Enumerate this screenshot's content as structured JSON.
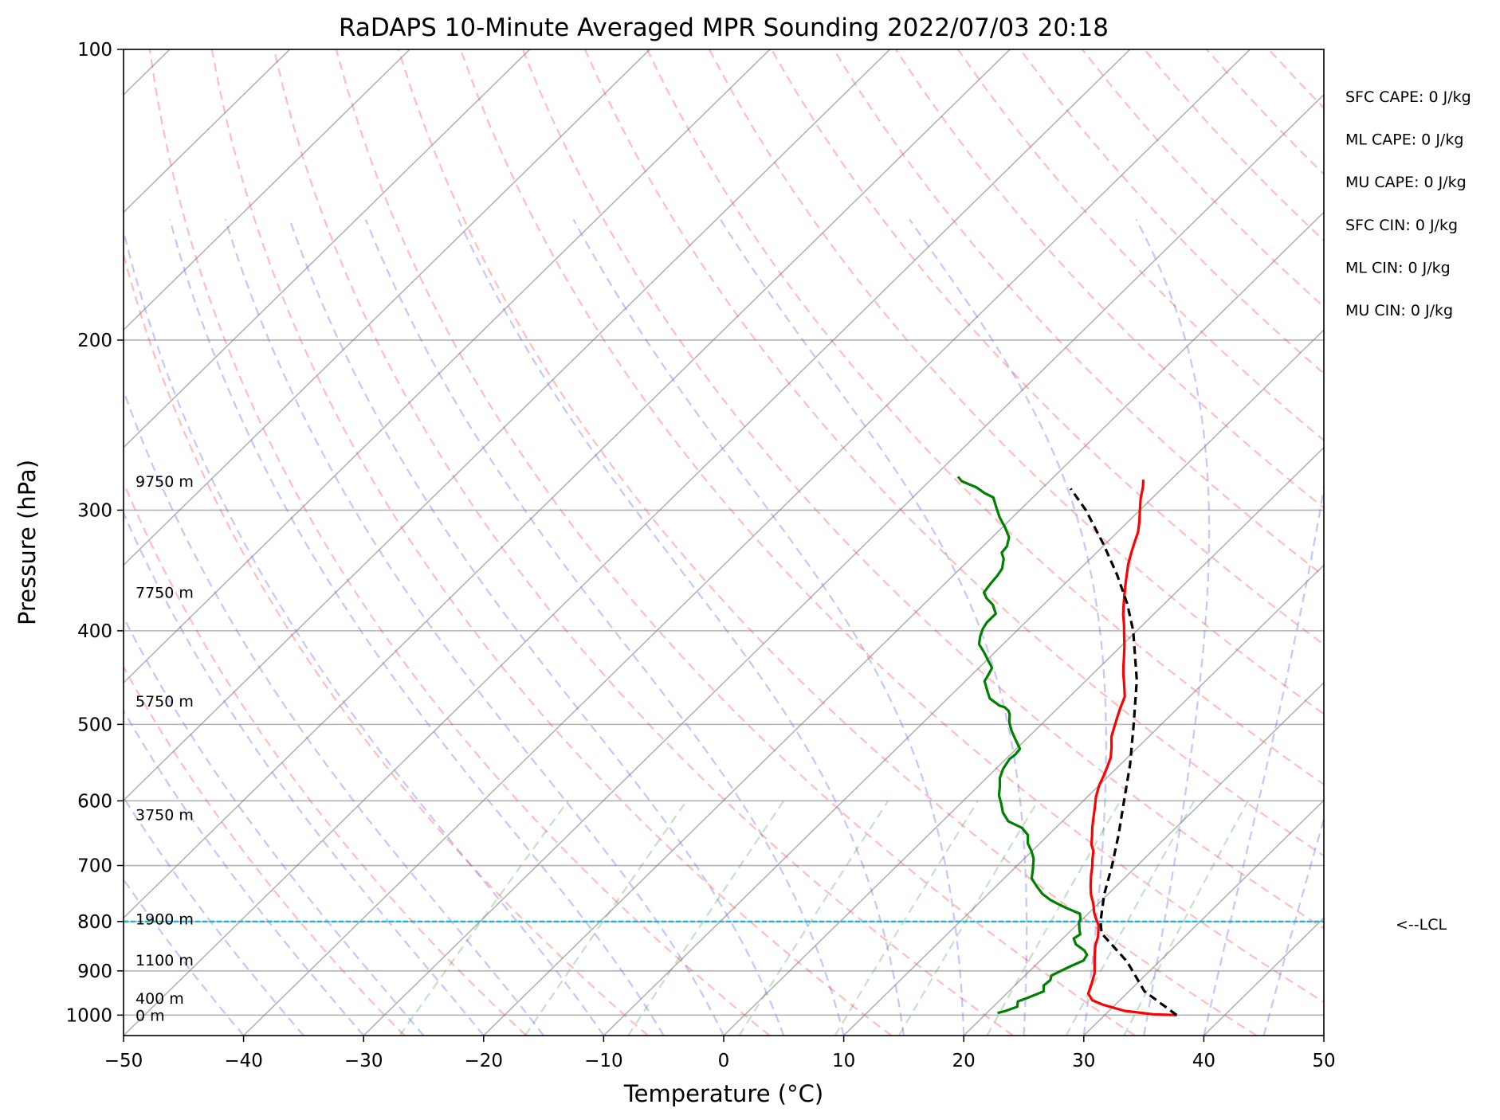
{
  "chart_data": {
    "type": "line",
    "title": "RaDAPS 10-Minute Averaged MPR Sounding 2022/07/03 20:18",
    "xlabel": "Temperature (°C)",
    "ylabel": "Pressure (hPa)",
    "xlim": [
      -50,
      50
    ],
    "ylim": [
      1050,
      100
    ],
    "y_scale": "log",
    "skew_t": true,
    "grid": true,
    "x_ticks": [
      "−50",
      "−40",
      "−30",
      "−20",
      "−10",
      "0",
      "10",
      "20",
      "30",
      "40",
      "50"
    ],
    "x_tick_values": [
      -50,
      -40,
      -30,
      -20,
      -10,
      0,
      10,
      20,
      30,
      40,
      50
    ],
    "y_ticks": [
      "100",
      "200",
      "300",
      "400",
      "500",
      "600",
      "700",
      "800",
      "900",
      "1000"
    ],
    "y_tick_values": [
      100,
      200,
      300,
      400,
      500,
      600,
      700,
      800,
      900,
      1000
    ],
    "height_labels": [
      {
        "text": "9750 m",
        "p": 280
      },
      {
        "text": "7750 m",
        "p": 365
      },
      {
        "text": "5750 m",
        "p": 473
      },
      {
        "text": "3750 m",
        "p": 620
      },
      {
        "text": "1900 m",
        "p": 795
      },
      {
        "text": "1100 m",
        "p": 877
      },
      {
        "text": "400 m",
        "p": 960
      },
      {
        "text": "0 m",
        "p": 1000
      }
    ],
    "indices": [
      "SFC CAPE: 0 J/kg",
      "ML CAPE: 0 J/kg",
      "MU CAPE: 0 J/kg",
      "SFC CIN: 0 J/kg",
      "ML CIN: 0 J/kg",
      "MU CIN: 0 J/kg"
    ],
    "lcl_label": "<--LCL",
    "lcl_pressure": 800,
    "series": [
      {
        "color": "#ff0000",
        "points": [
          [
            36,
            1000
          ],
          [
            34,
            998
          ],
          [
            31.3,
            990
          ],
          [
            28.9,
            975
          ],
          [
            27.7,
            965
          ],
          [
            26.8,
            950
          ],
          [
            26.3,
            930
          ],
          [
            25.6,
            905
          ],
          [
            24.6,
            880
          ],
          [
            24,
            865
          ],
          [
            23.3,
            847
          ],
          [
            22.8,
            830
          ],
          [
            21.9,
            808
          ],
          [
            21.1,
            795
          ],
          [
            20.4,
            783
          ],
          [
            19.6,
            767
          ],
          [
            18.6,
            750
          ],
          [
            17.9,
            736
          ],
          [
            17,
            717
          ],
          [
            16.3,
            701
          ],
          [
            15.7,
            689
          ],
          [
            15.1,
            676
          ],
          [
            14.4,
            666
          ],
          [
            13.7,
            652
          ],
          [
            13,
            639
          ],
          [
            12.2,
            623
          ],
          [
            11.5,
            609
          ],
          [
            10.7,
            594
          ],
          [
            10,
            578
          ],
          [
            9.6,
            566
          ],
          [
            9.1,
            553
          ],
          [
            8.6,
            541
          ],
          [
            7.8,
            528
          ],
          [
            6.9,
            515
          ],
          [
            6.3,
            503
          ],
          [
            5.7,
            491
          ],
          [
            5.2,
            481
          ],
          [
            4.6,
            468
          ],
          [
            3.3,
            452
          ],
          [
            2.6,
            444
          ],
          [
            1.8,
            434
          ],
          [
            1.1,
            425
          ],
          [
            0.2,
            414
          ],
          [
            -0.7,
            404
          ],
          [
            -1.6,
            394
          ],
          [
            -2.5,
            385
          ],
          [
            -3.3,
            376
          ],
          [
            -4.1,
            367
          ],
          [
            -4.9,
            358
          ],
          [
            -5.6,
            350
          ],
          [
            -6.4,
            341
          ],
          [
            -7.1,
            332
          ],
          [
            -7.7,
            324
          ],
          [
            -8.3,
            316
          ],
          [
            -9.1,
            308
          ],
          [
            -10,
            300
          ],
          [
            -10.9,
            292
          ],
          [
            -11.7,
            284
          ],
          [
            -12.3,
            279
          ]
        ]
      },
      {
        "color": "#008000",
        "points": [
          [
            20.9,
            995
          ],
          [
            21.4,
            990
          ],
          [
            22,
            980
          ],
          [
            21.6,
            968
          ],
          [
            22.2,
            958
          ],
          [
            22.9,
            945
          ],
          [
            22.4,
            932
          ],
          [
            22.5,
            920
          ],
          [
            22.2,
            910
          ],
          [
            22.6,
            900
          ],
          [
            23,
            890
          ],
          [
            23.6,
            878
          ],
          [
            23.4,
            866
          ],
          [
            22.8,
            857
          ],
          [
            21.6,
            845
          ],
          [
            20.9,
            833
          ],
          [
            21.1,
            825
          ],
          [
            20.6,
            815
          ],
          [
            20,
            802
          ],
          [
            19.8,
            795
          ],
          [
            19.3,
            785
          ],
          [
            17.9,
            776
          ],
          [
            16.9,
            769
          ],
          [
            15.7,
            760
          ],
          [
            14.5,
            749
          ],
          [
            13.5,
            737
          ],
          [
            12.3,
            722
          ],
          [
            11.7,
            708
          ],
          [
            10.8,
            689
          ],
          [
            10,
            677
          ],
          [
            9,
            664
          ],
          [
            8.3,
            651
          ],
          [
            7.2,
            640
          ],
          [
            5.5,
            630
          ],
          [
            4.3,
            617
          ],
          [
            3.4,
            604
          ],
          [
            2.5,
            592
          ],
          [
            1.9,
            581
          ],
          [
            1.1,
            568
          ],
          [
            0.6,
            556
          ],
          [
            0.3,
            543
          ],
          [
            0.4,
            537
          ],
          [
            0.3,
            530
          ],
          [
            -0.9,
            518
          ],
          [
            -1.9,
            508
          ],
          [
            -2.8,
            498
          ],
          [
            -3.5,
            488
          ],
          [
            -3.9,
            484
          ],
          [
            -4.5,
            480
          ],
          [
            -5.1,
            478
          ],
          [
            -6.5,
            470
          ],
          [
            -7.4,
            461
          ],
          [
            -8.4,
            451
          ],
          [
            -8.6,
            445
          ],
          [
            -8.9,
            437
          ],
          [
            -9.9,
            429
          ],
          [
            -10.9,
            421
          ],
          [
            -12,
            413
          ],
          [
            -12.6,
            405
          ],
          [
            -13,
            398
          ],
          [
            -13.2,
            392
          ],
          [
            -13.2,
            384
          ],
          [
            -14.2,
            376
          ],
          [
            -15.3,
            370
          ],
          [
            -16,
            365
          ],
          [
            -16.2,
            357
          ],
          [
            -16.3,
            351
          ],
          [
            -16.5,
            345
          ],
          [
            -17.2,
            337
          ],
          [
            -17.9,
            332
          ],
          [
            -18,
            327
          ],
          [
            -18.6,
            320
          ],
          [
            -19.7,
            313
          ],
          [
            -21.1,
            305
          ],
          [
            -22.2,
            298
          ],
          [
            -23.3,
            291
          ],
          [
            -24.4,
            288
          ],
          [
            -25.6,
            284
          ],
          [
            -27.3,
            280
          ],
          [
            -28,
            277
          ]
        ]
      },
      {
        "color": "#000000",
        "dashed": true,
        "points": [
          [
            36,
            1000
          ],
          [
            31.3,
            945
          ],
          [
            27.3,
            880
          ],
          [
            22.8,
            823
          ],
          [
            21.7,
            800
          ],
          [
            19.7,
            750
          ],
          [
            17.9,
            700
          ],
          [
            15.8,
            650
          ],
          [
            13.4,
            600
          ],
          [
            10.8,
            550
          ],
          [
            7.7,
            500
          ],
          [
            4.2,
            450
          ],
          [
            -0.3,
            400
          ],
          [
            -3.1,
            375
          ],
          [
            -6.4,
            350
          ],
          [
            -10.2,
            325
          ],
          [
            -14.5,
            300
          ],
          [
            -17.6,
            285
          ]
        ]
      }
    ]
  }
}
